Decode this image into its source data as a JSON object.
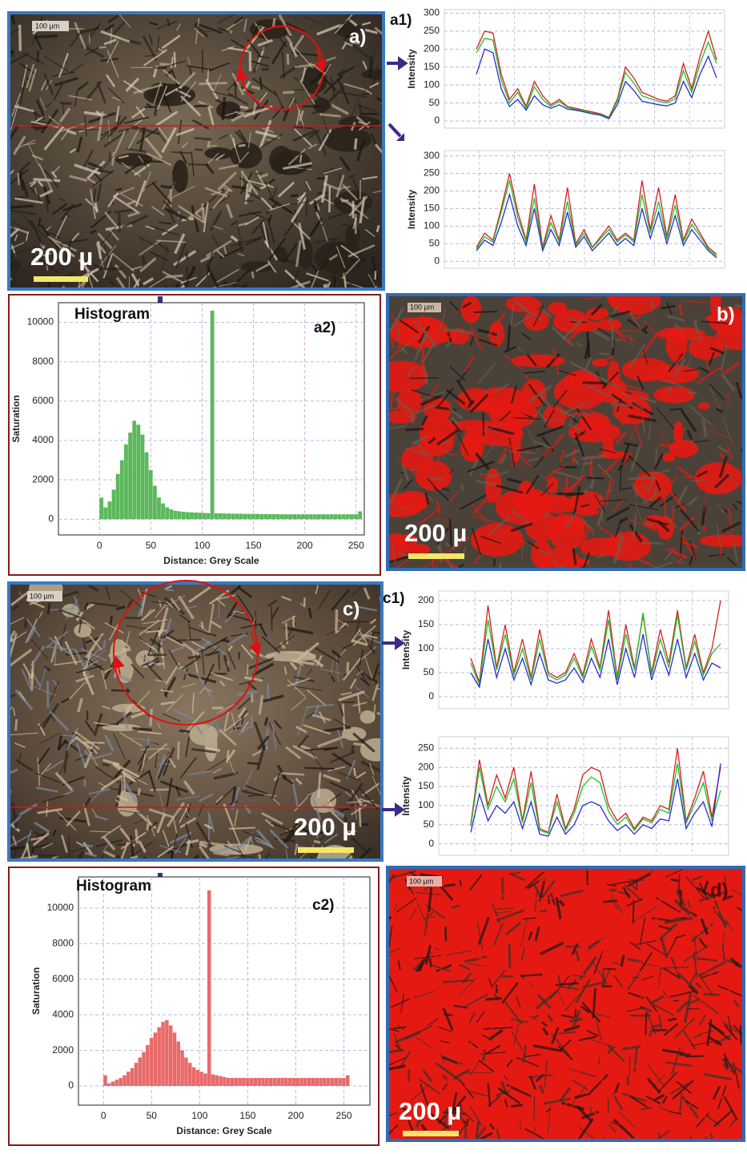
{
  "images": [
    {
      "label": "a)",
      "scale_small": "100 µm",
      "scale_bar": "200 µ"
    },
    {
      "label": "b)",
      "scale_small": "100 µm",
      "scale_bar": "200 µ"
    },
    {
      "label": "c)",
      "scale_small": "100 µm",
      "scale_bar": "200 µ"
    },
    {
      "label": "d)",
      "scale_small": "100 µm",
      "scale_bar": "200 µ"
    }
  ],
  "chart_data": [
    {
      "type": "line",
      "panel_label": "a1)",
      "y_label": "Intensity",
      "ylim": [
        -20,
        310
      ],
      "yticks": [
        0,
        50,
        100,
        150,
        200,
        250,
        300
      ],
      "grid": true,
      "series": [
        {
          "color": "#d42020",
          "values": [
            200,
            250,
            245,
            130,
            60,
            90,
            40,
            110,
            70,
            45,
            60,
            40,
            35,
            30,
            25,
            20,
            10,
            60,
            150,
            120,
            80,
            70,
            60,
            55,
            70,
            160,
            90,
            180,
            250,
            170
          ]
        },
        {
          "color": "#22c022",
          "values": [
            190,
            230,
            225,
            115,
            50,
            80,
            35,
            95,
            60,
            40,
            55,
            38,
            32,
            28,
            22,
            18,
            8,
            55,
            135,
            105,
            70,
            62,
            55,
            50,
            62,
            140,
            80,
            160,
            220,
            160
          ]
        },
        {
          "color": "#2a2ad0",
          "values": [
            130,
            200,
            190,
            90,
            40,
            60,
            30,
            70,
            45,
            35,
            45,
            33,
            30,
            25,
            20,
            16,
            6,
            45,
            110,
            85,
            55,
            50,
            45,
            42,
            50,
            110,
            65,
            130,
            180,
            120
          ]
        }
      ]
    },
    {
      "type": "line",
      "y_label": "Intensity",
      "ylim": [
        -20,
        315
      ],
      "yticks": [
        0,
        50,
        100,
        150,
        200,
        250,
        300
      ],
      "grid": true,
      "series": [
        {
          "color": "#d42020",
          "values": [
            40,
            80,
            60,
            150,
            250,
            140,
            60,
            220,
            40,
            130,
            60,
            210,
            50,
            90,
            40,
            70,
            100,
            60,
            80,
            60,
            230,
            90,
            210,
            70,
            190,
            60,
            120,
            80,
            40,
            20
          ]
        },
        {
          "color": "#22c022",
          "values": [
            35,
            70,
            55,
            140,
            230,
            125,
            55,
            180,
            35,
            110,
            55,
            170,
            45,
            80,
            38,
            65,
            90,
            55,
            75,
            55,
            190,
            80,
            170,
            62,
            160,
            55,
            105,
            72,
            35,
            15
          ]
        },
        {
          "color": "#2a2ad0",
          "values": [
            30,
            60,
            45,
            110,
            190,
            100,
            45,
            150,
            30,
            90,
            45,
            140,
            40,
            70,
            30,
            55,
            80,
            45,
            65,
            45,
            150,
            65,
            140,
            50,
            130,
            45,
            90,
            60,
            30,
            10
          ]
        }
      ]
    },
    {
      "type": "histogram",
      "panel_label": "a2)",
      "annotation": "Histogram",
      "x_label": "Distance: Grey Scale",
      "y_label": "Saturation",
      "xlim": [
        -40,
        258
      ],
      "ylim": [
        -800,
        11000
      ],
      "xticks": [
        0,
        50,
        100,
        150,
        200,
        250
      ],
      "yticks": [
        0,
        2000,
        4000,
        6000,
        8000,
        10000
      ],
      "grid": true,
      "color": "#5cb85c",
      "bins": [
        0,
        4,
        8,
        12,
        16,
        20,
        24,
        28,
        32,
        36,
        40,
        44,
        48,
        52,
        56,
        60,
        64,
        68,
        72,
        76,
        80,
        84,
        88,
        92,
        96,
        100,
        104,
        108,
        112,
        116,
        120,
        124,
        128,
        132,
        136,
        140,
        144,
        148,
        152,
        156,
        160,
        164,
        168,
        172,
        176,
        180,
        184,
        188,
        192,
        196,
        200,
        204,
        208,
        212,
        216,
        220,
        224,
        228,
        232,
        236,
        240,
        244,
        248,
        252,
        256
      ],
      "values": [
        1100,
        600,
        900,
        1500,
        2300,
        3000,
        3800,
        4400,
        5000,
        4800,
        4300,
        3400,
        2500,
        1700,
        1100,
        800,
        600,
        500,
        430,
        400,
        380,
        360,
        350,
        340,
        330,
        320,
        310,
        10600,
        300,
        300,
        290,
        290,
        280,
        280,
        280,
        270,
        270,
        270,
        270,
        260,
        260,
        260,
        260,
        260,
        250,
        250,
        250,
        250,
        250,
        250,
        250,
        250,
        250,
        250,
        250,
        250,
        250,
        250,
        250,
        250,
        250,
        250,
        250,
        400
      ]
    },
    {
      "type": "line",
      "panel_label": "c1)",
      "y_label": "Intensity",
      "ylim": [
        -25,
        220
      ],
      "yticks": [
        0,
        50,
        100,
        150,
        200
      ],
      "grid": true,
      "series": [
        {
          "color": "#d42020",
          "values": [
            80,
            30,
            190,
            60,
            150,
            50,
            120,
            40,
            140,
            50,
            40,
            50,
            90,
            45,
            120,
            60,
            180,
            40,
            150,
            60,
            170,
            50,
            140,
            70,
            180,
            60,
            130,
            50,
            100,
            200
          ]
        },
        {
          "color": "#22c022",
          "values": [
            70,
            25,
            160,
            55,
            130,
            45,
            100,
            35,
            120,
            45,
            35,
            45,
            80,
            40,
            105,
            55,
            160,
            35,
            130,
            55,
            175,
            45,
            120,
            60,
            170,
            55,
            115,
            45,
            90,
            110
          ]
        },
        {
          "color": "#2a2ad0",
          "values": [
            50,
            20,
            120,
            40,
            100,
            35,
            80,
            25,
            90,
            35,
            28,
            35,
            60,
            30,
            80,
            40,
            120,
            25,
            100,
            40,
            130,
            35,
            95,
            45,
            120,
            40,
            90,
            35,
            70,
            60
          ]
        }
      ]
    },
    {
      "type": "line",
      "y_label": "Intensity",
      "ylim": [
        -30,
        280
      ],
      "yticks": [
        0,
        50,
        100,
        150,
        200,
        250
      ],
      "grid": true,
      "series": [
        {
          "color": "#d42020",
          "values": [
            50,
            220,
            100,
            180,
            120,
            200,
            60,
            190,
            40,
            30,
            130,
            40,
            90,
            180,
            200,
            190,
            100,
            60,
            80,
            40,
            70,
            60,
            100,
            90,
            250,
            60,
            120,
            190,
            70,
            200
          ]
        },
        {
          "color": "#22c022",
          "values": [
            45,
            200,
            90,
            150,
            110,
            170,
            55,
            160,
            35,
            28,
            110,
            35,
            80,
            150,
            175,
            160,
            85,
            50,
            70,
            35,
            65,
            55,
            90,
            80,
            210,
            55,
            105,
            160,
            60,
            140
          ]
        },
        {
          "color": "#2a2ad0",
          "values": [
            30,
            130,
            60,
            100,
            80,
            110,
            40,
            110,
            25,
            20,
            70,
            25,
            50,
            100,
            110,
            100,
            60,
            35,
            50,
            25,
            50,
            40,
            65,
            60,
            170,
            40,
            80,
            110,
            45,
            210
          ]
        }
      ]
    },
    {
      "type": "histogram",
      "panel_label": "c2)",
      "annotation": "Histogram",
      "x_label": "Distance: Grey Scale",
      "y_label": "Saturation",
      "xlim": [
        -26,
        277
      ],
      "ylim": [
        -1080,
        11750
      ],
      "xticks": [
        0,
        50,
        100,
        150,
        200,
        250
      ],
      "yticks": [
        0,
        2000,
        4000,
        6000,
        8000,
        10000
      ],
      "grid": true,
      "color": "#e86a6a",
      "bins": [
        0,
        4,
        8,
        12,
        16,
        20,
        24,
        28,
        32,
        36,
        40,
        44,
        48,
        52,
        56,
        60,
        64,
        68,
        72,
        76,
        80,
        84,
        88,
        92,
        96,
        100,
        104,
        108,
        112,
        116,
        120,
        124,
        128,
        132,
        136,
        140,
        144,
        148,
        152,
        156,
        160,
        164,
        168,
        172,
        176,
        180,
        184,
        188,
        192,
        196,
        200,
        204,
        208,
        212,
        216,
        220,
        224,
        228,
        232,
        236,
        240,
        244,
        248,
        252,
        256
      ],
      "values": [
        600,
        150,
        250,
        350,
        450,
        600,
        800,
        1000,
        1300,
        1600,
        1900,
        2300,
        2700,
        3000,
        3300,
        3600,
        3700,
        3400,
        3000,
        2500,
        2000,
        1600,
        1300,
        1050,
        900,
        800,
        700,
        11000,
        650,
        600,
        550,
        500,
        450,
        450,
        450,
        450,
        450,
        450,
        450,
        450,
        450,
        450,
        450,
        450,
        450,
        450,
        450,
        450,
        450,
        450,
        450,
        450,
        450,
        450,
        450,
        450,
        450,
        450,
        450,
        450,
        450,
        450,
        450,
        600
      ]
    }
  ]
}
